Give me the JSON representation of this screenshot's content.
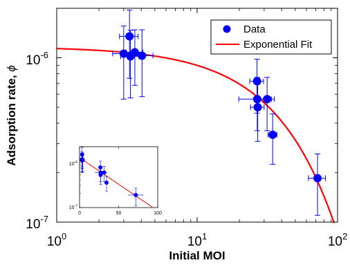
{
  "chart_data": [
    {
      "type": "scatter",
      "xscale": "log",
      "yscale": "log",
      "xlim": [
        1,
        100
      ],
      "ylim": [
        1e-07,
        2e-06
      ],
      "xlabel": "Initial MOI",
      "ylabel": "Adsorption rate, ",
      "ylabel_symbol": "ϕ",
      "x_ticks": [
        {
          "base": "10",
          "exp": "0"
        },
        {
          "base": "10",
          "exp": "1"
        },
        {
          "base": "10",
          "exp": "2"
        }
      ],
      "y_ticks": [
        {
          "base": "10",
          "exp": "-7"
        },
        {
          "base": "10",
          "exp": "-6"
        }
      ],
      "grid": false,
      "legend_position": "top-right",
      "colors": {
        "data": "#0000ff",
        "fit": "#ff0000"
      },
      "series": [
        {
          "name": "Data",
          "kind": "markers_with_errorbars",
          "points": [
            {
              "x": 3.0,
              "y": 1.06e-06,
              "xerr": [
                0.5,
                0.5
              ],
              "yerr": [
                5e-07,
                5e-07
              ]
            },
            {
              "x": 3.3,
              "y": 1.35e-06,
              "xerr": [
                0.5,
                0.5
              ],
              "yerr": [
                6e-07,
                6e-07
              ]
            },
            {
              "x": 3.35,
              "y": 1.02e-06,
              "xerr": [
                0.5,
                0.5
              ],
              "yerr": [
                4.5e-07,
                4.5e-07
              ]
            },
            {
              "x": 3.6,
              "y": 1.08e-06,
              "xerr": [
                0.5,
                0.5
              ],
              "yerr": [
                4e-07,
                4e-07
              ]
            },
            {
              "x": 4.05,
              "y": 1.03e-06,
              "xerr": [
                0.8,
                0.8
              ],
              "yerr": [
                4.5e-07,
                4.5e-07
              ]
            },
            {
              "x": 26.7,
              "y": 7.2e-07,
              "xerr": [
                3.0,
                3.0
              ],
              "yerr": [
                2.6e-07,
                2.6e-07
              ]
            },
            {
              "x": 26.8,
              "y": 5.6e-07,
              "xerr": [
                7.0,
                7.0
              ],
              "yerr": [
                2e-07,
                2e-07
              ]
            },
            {
              "x": 27.0,
              "y": 5e-07,
              "xerr": [
                3.0,
                3.0
              ],
              "yerr": [
                1.9e-07,
                1.9e-07
              ]
            },
            {
              "x": 31.5,
              "y": 5.6e-07,
              "xerr": [
                4.0,
                4.0
              ],
              "yerr": [
                2e-07,
                2e-07
              ]
            },
            {
              "x": 34.5,
              "y": 3.4e-07,
              "xerr": [
                2.5,
                2.5
              ],
              "yerr": [
                1.15e-07,
                1.15e-07
              ]
            },
            {
              "x": 72.0,
              "y": 1.85e-07,
              "xerr": [
                10.0,
                10.0
              ],
              "yerr": [
                7.5e-08,
                7.5e-08
              ]
            }
          ]
        },
        {
          "name": "Exponential Fit",
          "kind": "line",
          "function": "phi = a * exp(-b * MOI)",
          "params": {
            "a": 1.1675e-06,
            "b": 0.02616
          }
        }
      ]
    },
    {
      "type": "scatter",
      "role": "inset",
      "xscale": "linear",
      "yscale": "log",
      "xlim": [
        0,
        100
      ],
      "ylim": [
        1e-07,
        2e-06
      ],
      "x_ticks": [
        "0",
        "50",
        "100"
      ],
      "y_ticks": [
        {
          "base": "10",
          "exp": "-7"
        },
        {
          "base": "10",
          "exp": "-6"
        }
      ],
      "series_ref": "same data and fit as main plot"
    }
  ]
}
